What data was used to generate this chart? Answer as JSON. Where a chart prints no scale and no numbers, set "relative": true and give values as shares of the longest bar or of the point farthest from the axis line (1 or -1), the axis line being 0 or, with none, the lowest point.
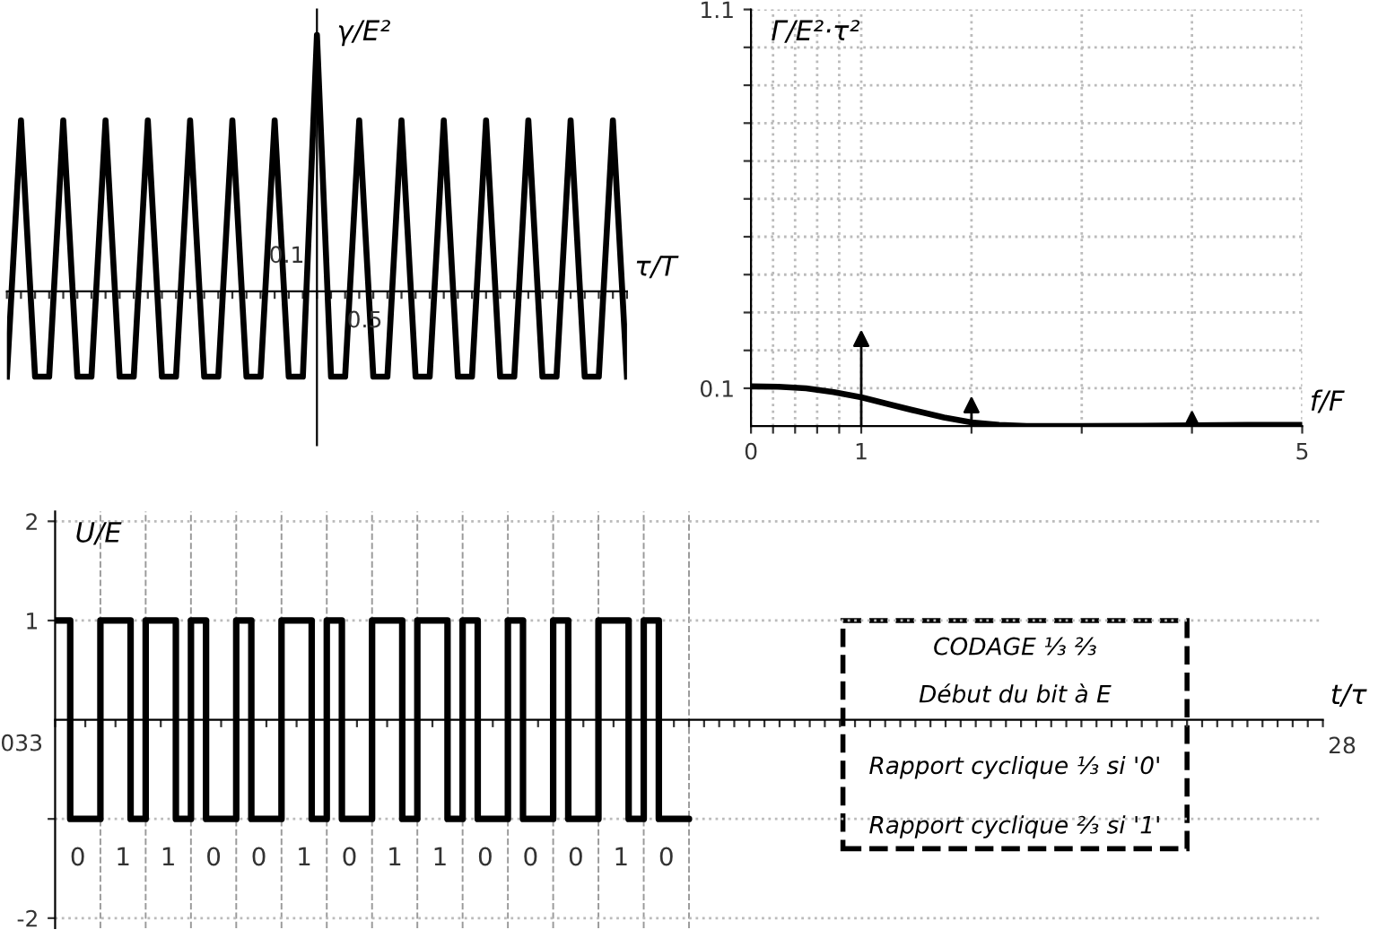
{
  "chart_data": [
    {
      "type": "line",
      "xlabel": "τ/T",
      "ylabel": "γ/E²",
      "relative": true,
      "line_style": "solid",
      "categories": [
        null,
        null,
        null,
        null,
        null,
        null,
        null,
        null,
        null,
        null,
        null,
        null,
        null,
        null,
        null,
        null,
        null,
        null,
        null,
        null,
        null,
        null,
        null,
        null,
        null,
        null,
        null,
        null,
        null,
        null,
        null,
        null,
        null,
        null,
        null,
        null,
        null,
        null,
        null,
        null,
        null,
        null,
        null,
        null,
        null
      ],
      "annotations": [
        "0.1",
        "0.5"
      ],
      "series": [
        {
          "color": "#000000",
          "values": [
            -0.333,
            0.667,
            -0.333,
            -0.333,
            0.667,
            -0.333,
            -0.333,
            0.667,
            -0.333,
            -0.333,
            0.667,
            -0.333,
            -0.333,
            0.667,
            -0.333,
            -0.333,
            0.667,
            -0.333,
            -0.333,
            0.667,
            -0.333,
            -0.333,
            1,
            -0.333,
            -0.333,
            0.667,
            -0.333,
            -0.333,
            0.667,
            -0.333,
            -0.333,
            0.667,
            -0.333,
            -0.333,
            0.667,
            -0.333,
            -0.333,
            0.667,
            -0.333,
            -0.333,
            0.667,
            -0.333,
            -0.333,
            0.667,
            -0.333
          ]
        }
      ]
    },
    {
      "type": "line",
      "xlabel": "f/F",
      "ylabel": "Γ/E²·τ²",
      "xlim": [
        0,
        5
      ],
      "ylim": [
        0,
        1.1
      ],
      "grid": true,
      "xticks": [
        0,
        {
          "value": 0.2,
          "label": null
        },
        {
          "value": 0.4,
          "label": null
        },
        {
          "value": 0.6,
          "label": null
        },
        {
          "value": 0.8,
          "label": null
        },
        1,
        {
          "value": 2,
          "label": null
        },
        {
          "value": 3,
          "label": null
        },
        {
          "value": 4,
          "label": null
        },
        5
      ],
      "yticks": [
        0.1,
        {
          "value": 0.2,
          "label": null
        },
        {
          "value": 0.3,
          "label": null
        },
        {
          "value": 0.4,
          "label": null
        },
        {
          "value": 0.5,
          "label": null
        },
        {
          "value": 0.6,
          "label": null
        },
        {
          "value": 0.7,
          "label": null
        },
        {
          "value": 0.8,
          "label": null
        },
        {
          "value": 0.9,
          "label": null
        },
        {
          "value": 1.0,
          "label": null
        },
        1.1
      ],
      "series": [
        {
          "color": "#000000",
          "x": [
            0,
            0.25,
            0.5,
            0.75,
            1,
            1.25,
            1.5,
            1.75,
            2,
            2.25,
            2.5,
            3,
            3.5,
            4,
            4.5,
            5
          ],
          "values": [
            0.105,
            0.104,
            0.1,
            0.09,
            0.076,
            0.058,
            0.04,
            0.023,
            0.01,
            0.003,
            0,
            0,
            0.001,
            0.002,
            0.003,
            0.003
          ]
        },
        {
          "type": "lollipop",
          "color": "#000000",
          "x": [
            1,
            2,
            4
          ],
          "values": [
            0.23,
            0.055,
            0.018
          ]
        }
      ]
    },
    {
      "type": "step",
      "xlabel": "t/τ",
      "ylabel": "U/E",
      "ylim": [
        -2.1,
        2.1
      ],
      "grid": true,
      "categories": [
        null,
        null,
        null,
        null,
        null,
        null,
        null,
        null,
        null,
        null,
        null,
        null,
        null,
        null,
        null,
        null,
        null,
        null,
        null,
        null,
        null,
        null,
        null,
        null,
        null,
        null,
        null,
        null,
        null,
        null,
        null,
        null,
        null,
        null,
        null,
        null,
        null,
        null,
        null,
        null,
        null,
        null,
        null,
        null,
        null,
        null,
        null,
        null,
        null,
        null,
        null,
        null,
        null,
        null,
        null,
        null,
        null,
        null,
        null,
        null,
        null,
        null,
        null,
        null,
        null,
        null,
        null,
        null,
        null,
        null,
        null,
        null,
        null,
        null,
        null,
        null,
        null,
        null,
        null,
        null,
        null,
        null,
        null,
        null,
        null
      ],
      "yticks": [
        -2,
        {
          "value": -1,
          "label": null
        },
        1,
        2
      ],
      "series": [
        {
          "color": "#000000",
          "values": [
            1,
            -1,
            -1,
            1,
            1,
            -1,
            1,
            1,
            -1,
            1,
            -1,
            -1,
            1,
            -1,
            -1,
            1,
            1,
            -1,
            1,
            -1,
            -1,
            1,
            1,
            -1,
            1,
            1,
            -1,
            1,
            -1,
            -1,
            1,
            -1,
            -1,
            1,
            -1,
            -1,
            1,
            1,
            -1,
            1,
            -1,
            -1,
            -1,
            null,
            null,
            null,
            null,
            null,
            null,
            null,
            null,
            null,
            null,
            null,
            null,
            null,
            null,
            null,
            null,
            null,
            null,
            null,
            null,
            null,
            null,
            null,
            null,
            null,
            null,
            null,
            null,
            null,
            null,
            null,
            null,
            null,
            null,
            null,
            null,
            null,
            null,
            null,
            null,
            null,
            null
          ]
        }
      ],
      "annotations": [
        "CODAGE ⅓ ⅔",
        "Début du bit à E",
        "Rapport cyclique ⅓ si '0'",
        "Rapport cyclique ⅔ si '1'",
        "033",
        "28",
        "0",
        "1",
        "1",
        "0",
        "0",
        "1",
        "0",
        "1",
        "1",
        "0",
        "0",
        "0",
        "1",
        "0"
      ]
    }
  ]
}
